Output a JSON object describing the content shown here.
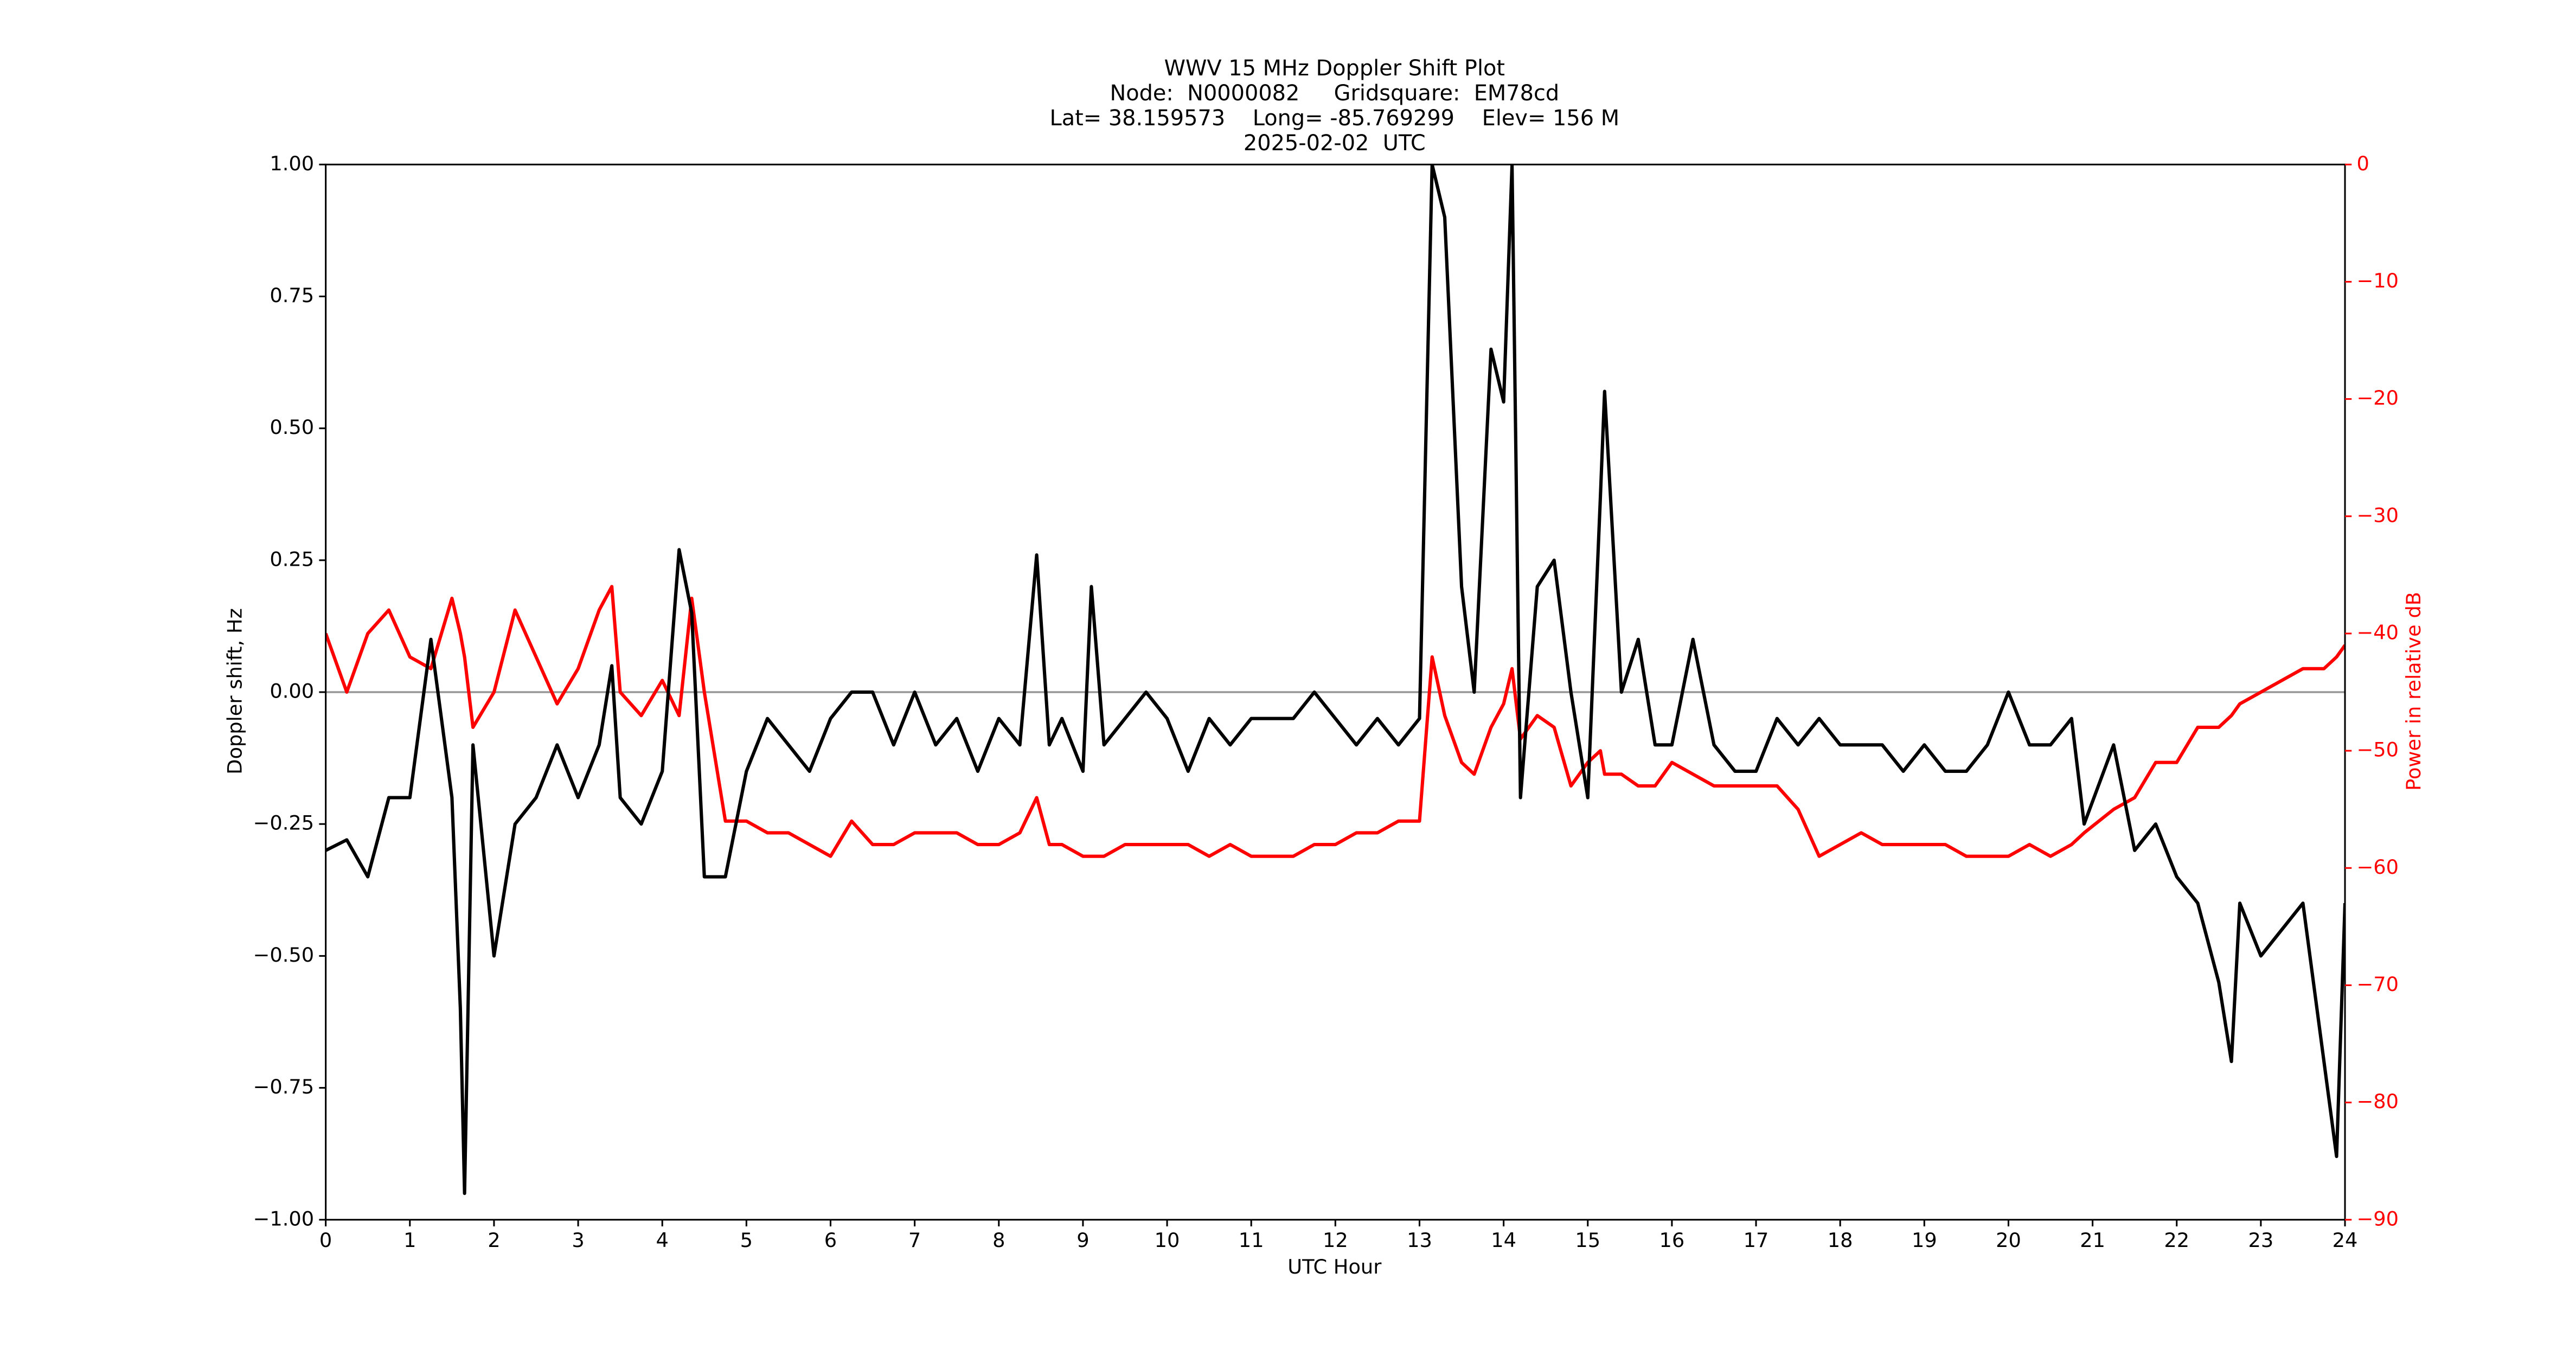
{
  "chart_data": {
    "type": "line",
    "title": "WWV 15 MHz Doppler Shift Plot",
    "subtitle": [
      "Node:  N0000082     Gridsquare:  EM78cd",
      "Lat= 38.159573    Long= -85.769299    Elev= 156 M",
      "2025-02-02  UTC"
    ],
    "xlabel": "UTC Hour",
    "ylabel": "Doppler shift, Hz",
    "y2label": "Power in relative dB",
    "x": [
      0,
      0.25,
      0.5,
      0.75,
      1,
      1.25,
      1.5,
      1.6,
      1.65,
      1.75,
      2,
      2.25,
      2.5,
      2.75,
      3,
      3.25,
      3.4,
      3.5,
      3.75,
      4,
      4.2,
      4.35,
      4.5,
      4.75,
      5,
      5.25,
      5.5,
      5.75,
      6,
      6.25,
      6.5,
      6.75,
      7,
      7.25,
      7.5,
      7.75,
      8,
      8.25,
      8.45,
      8.6,
      8.75,
      9,
      9.1,
      9.25,
      9.5,
      9.75,
      10,
      10.25,
      10.5,
      10.75,
      11,
      11.25,
      11.5,
      11.75,
      12,
      12.25,
      12.5,
      12.75,
      13,
      13.15,
      13.3,
      13.5,
      13.65,
      13.85,
      14,
      14.1,
      14.2,
      14.4,
      14.6,
      14.8,
      15,
      15.15,
      15.2,
      15.4,
      15.6,
      15.8,
      16,
      16.25,
      16.5,
      16.75,
      17,
      17.25,
      17.5,
      17.75,
      18,
      18.25,
      18.5,
      18.75,
      19,
      19.25,
      19.5,
      19.75,
      20,
      20.25,
      20.5,
      20.75,
      20.9,
      21.25,
      21.5,
      21.75,
      22,
      22.25,
      22.5,
      22.65,
      22.75,
      23,
      23.25,
      23.5,
      23.75,
      23.9,
      24
    ],
    "series": [
      {
        "color": "#000000",
        "values": [
          -0.3,
          -0.28,
          -0.35,
          -0.2,
          -0.2,
          0.1,
          -0.2,
          -0.6,
          -0.95,
          -0.1,
          -0.5,
          -0.25,
          -0.2,
          -0.1,
          -0.2,
          -0.1,
          0.05,
          -0.2,
          -0.25,
          -0.15,
          0.27,
          0.15,
          -0.35,
          -0.35,
          -0.15,
          -0.05,
          -0.1,
          -0.15,
          -0.05,
          0.0,
          0.0,
          -0.1,
          0.0,
          -0.1,
          -0.05,
          -0.15,
          -0.05,
          -0.1,
          0.26,
          -0.1,
          -0.05,
          -0.15,
          0.2,
          -0.1,
          -0.05,
          0.0,
          -0.05,
          -0.15,
          -0.05,
          -0.1,
          -0.05,
          -0.05,
          -0.05,
          0.0,
          -0.05,
          -0.1,
          -0.05,
          -0.1,
          -0.05,
          1.0,
          0.9,
          0.2,
          0.0,
          0.65,
          0.55,
          1.0,
          -0.2,
          0.2,
          0.25,
          0.0,
          -0.2,
          0.37,
          0.57,
          0.0,
          0.1,
          -0.1,
          -0.1,
          0.1,
          -0.1,
          -0.15,
          -0.15,
          -0.05,
          -0.1,
          -0.05,
          -0.1,
          -0.1,
          -0.1,
          -0.15,
          -0.1,
          -0.15,
          -0.15,
          -0.1,
          0.0,
          -0.1,
          -0.1,
          -0.05,
          -0.25,
          -0.1,
          -0.3,
          -0.25,
          -0.35,
          -0.4,
          -0.55,
          -0.7,
          -0.4,
          -0.5,
          -0.45,
          -0.4,
          -0.7,
          -0.88,
          -0.4
        ]
      },
      {
        "color": "#ff0000",
        "axis": "y2",
        "values": [
          -40,
          -45,
          -40,
          -38,
          -42,
          -43,
          -37,
          -40,
          -42,
          -48,
          -45,
          -38,
          -42,
          -46,
          -43,
          -38,
          -36,
          -45,
          -47,
          -44,
          -47,
          -37,
          -45,
          -56,
          -56,
          -57,
          -57,
          -58,
          -59,
          -56,
          -58,
          -58,
          -57,
          -57,
          -57,
          -58,
          -58,
          -57,
          -54,
          -58,
          -58,
          -59,
          -59,
          -59,
          -58,
          -58,
          -58,
          -58,
          -59,
          -58,
          -59,
          -59,
          -59,
          -58,
          -58,
          -57,
          -57,
          -56,
          -56,
          -42,
          -47,
          -51,
          -52,
          -48,
          -46,
          -43,
          -49,
          -47,
          -48,
          -53,
          -51,
          -50,
          -52,
          -52,
          -53,
          -53,
          -51,
          -52,
          -53,
          -53,
          -53,
          -53,
          -55,
          -59,
          -58,
          -57,
          -58,
          -58,
          -58,
          -58,
          -59,
          -59,
          -59,
          -58,
          -59,
          -58,
          -57,
          -55,
          -54,
          -51,
          -51,
          -48,
          -48,
          -47,
          -46,
          -45,
          -44,
          -43,
          -43,
          -42,
          -41
        ]
      }
    ],
    "hline": 0,
    "hline_color": "#999999",
    "xlim": [
      0,
      24
    ],
    "xticks": [
      0,
      1,
      2,
      3,
      4,
      5,
      6,
      7,
      8,
      9,
      10,
      11,
      12,
      13,
      14,
      15,
      16,
      17,
      18,
      19,
      20,
      21,
      22,
      23,
      24
    ],
    "ylim": [
      -1,
      1
    ],
    "yticks": [
      {
        "value": -1,
        "label": "−1.00"
      },
      {
        "value": -0.75,
        "label": "−0.75"
      },
      {
        "value": -0.5,
        "label": "−0.50"
      },
      {
        "value": -0.25,
        "label": "−0.25"
      },
      {
        "value": 0,
        "label": "0.00"
      },
      {
        "value": 0.25,
        "label": "0.25"
      },
      {
        "value": 0.5,
        "label": "0.50"
      },
      {
        "value": 0.75,
        "label": "0.75"
      },
      {
        "value": 1,
        "label": "1.00"
      }
    ],
    "y2lim": [
      -90,
      0
    ],
    "y2ticks": [
      {
        "value": -90,
        "label": "−90"
      },
      {
        "value": -80,
        "label": "−80"
      },
      {
        "value": -70,
        "label": "−70"
      },
      {
        "value": -60,
        "label": "−60"
      },
      {
        "value": -50,
        "label": "−50"
      },
      {
        "value": -40,
        "label": "−40"
      },
      {
        "value": -30,
        "label": "−30"
      },
      {
        "value": -20,
        "label": "−20"
      },
      {
        "value": -10,
        "label": "−10"
      },
      0
    ],
    "y2_color": "#ff0000"
  }
}
